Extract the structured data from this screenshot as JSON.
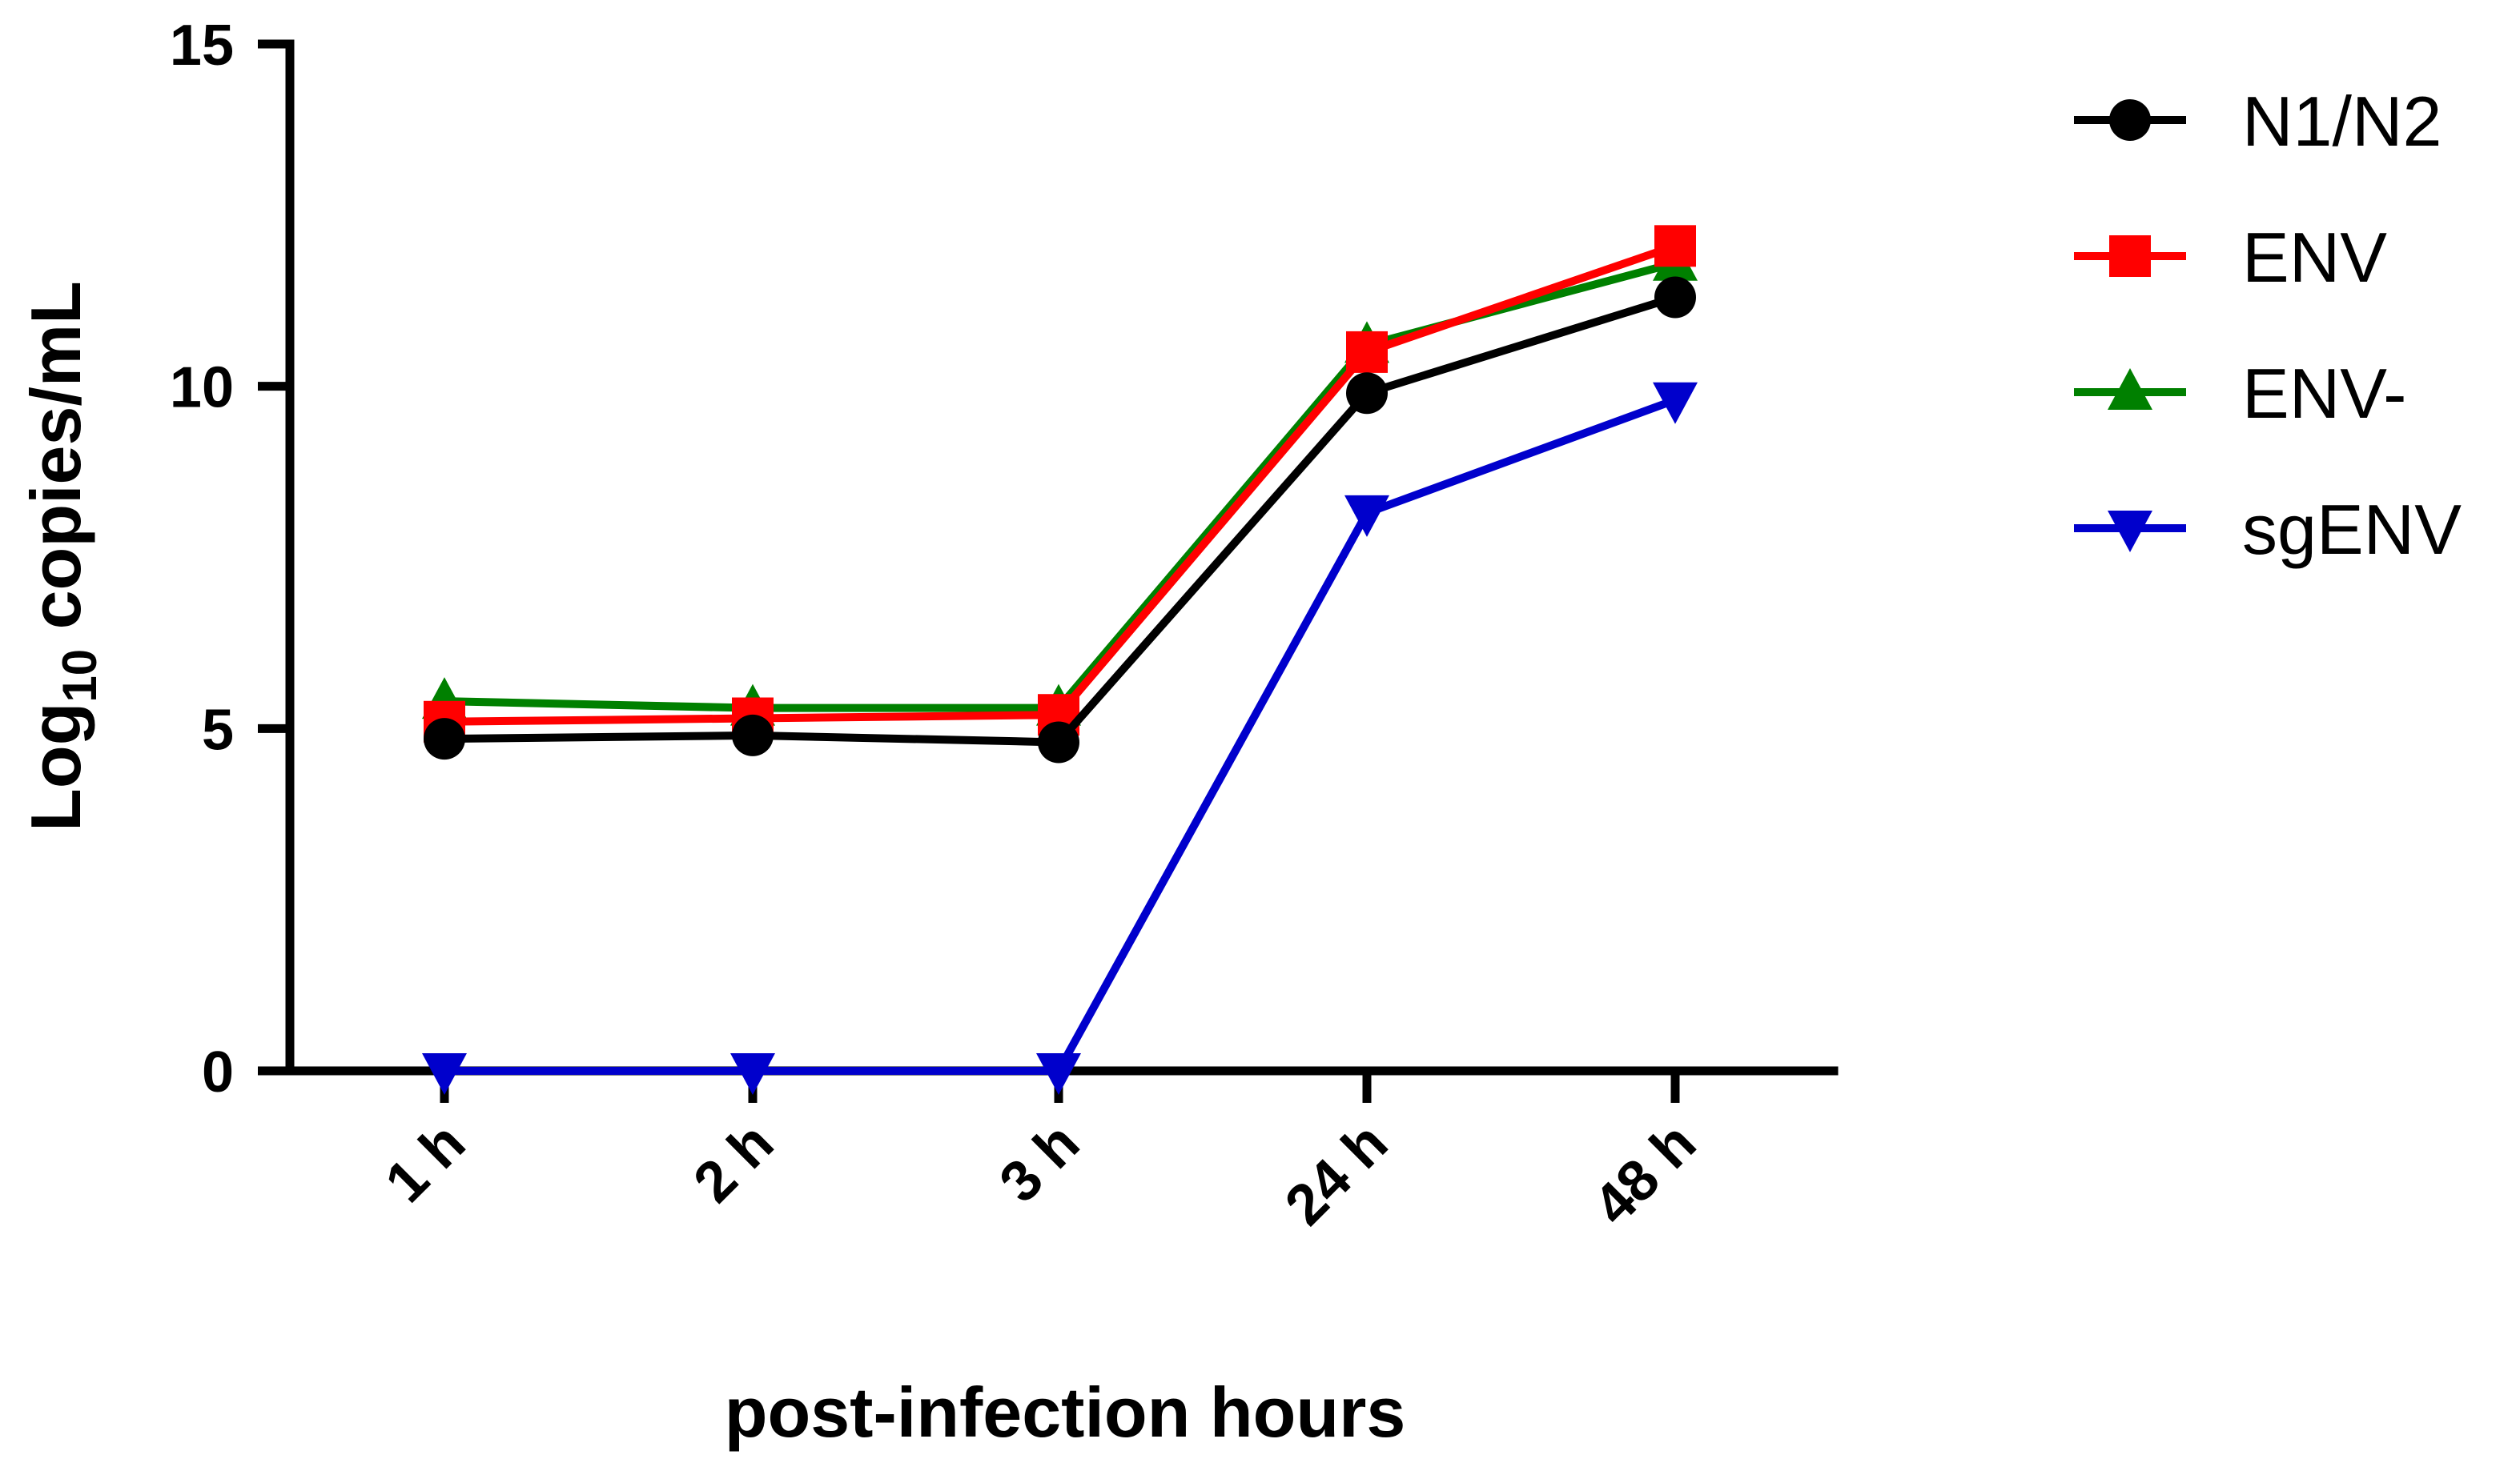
{
  "chart_data": {
    "type": "line",
    "categories": [
      "1 h",
      "2 h",
      "3 h",
      "24 h",
      "48 h"
    ],
    "xlabel": "post-infection hours",
    "ylabel": {
      "prefix": "Log",
      "subscript": "10",
      "suffix": " copies/mL"
    },
    "ylim": [
      0,
      15
    ],
    "yticks": [
      "0",
      "5",
      "10",
      "15"
    ],
    "ytick_values": [
      0,
      5,
      10,
      15
    ],
    "grid": false,
    "legend_position": "top-right",
    "series": [
      {
        "name": "N1/N2",
        "color": "#000000",
        "marker": "circle",
        "values": [
          4.85,
          4.9,
          4.8,
          9.9,
          11.3
        ]
      },
      {
        "name": "ENV",
        "color": "#ff0000",
        "marker": "square",
        "values": [
          5.1,
          5.15,
          5.2,
          10.5,
          12.05
        ]
      },
      {
        "name": "ENV-",
        "color": "#008000",
        "marker": "triangle-up",
        "values": [
          5.4,
          5.3,
          5.3,
          10.6,
          11.8
        ]
      },
      {
        "name": "sgENV",
        "color": "#0000cc",
        "marker": "triangle-down",
        "values": [
          0,
          0,
          0,
          8.15,
          9.8
        ]
      }
    ]
  }
}
